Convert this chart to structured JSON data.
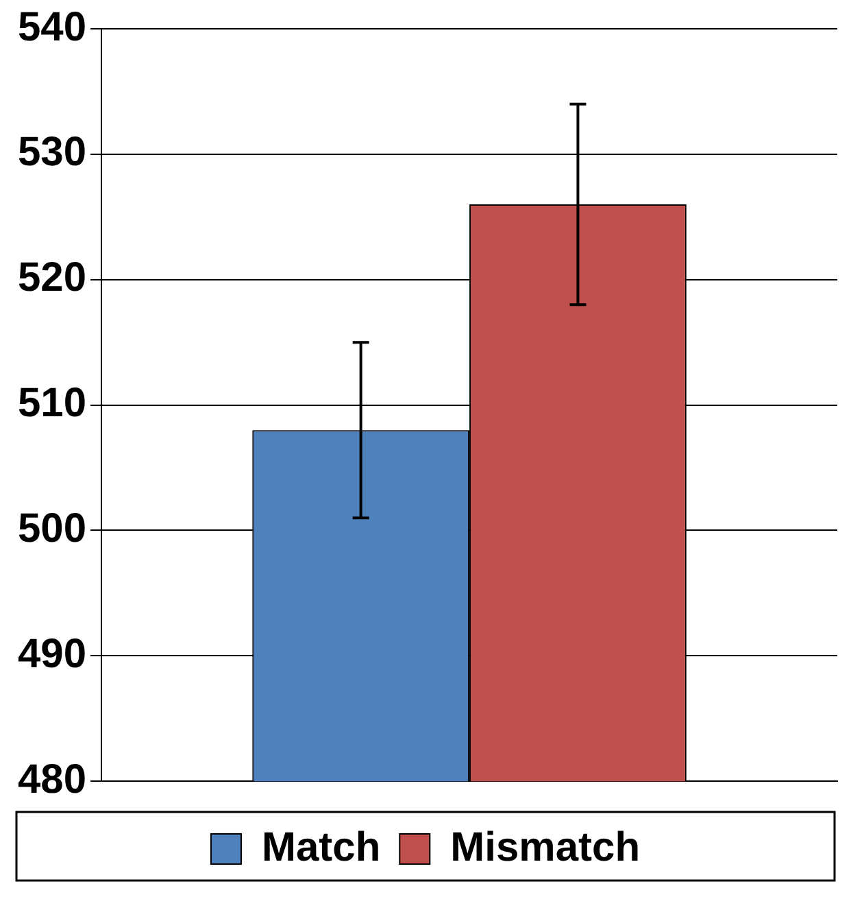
{
  "chart_data": {
    "type": "bar",
    "categories": [
      null
    ],
    "series": [
      {
        "name": "Match",
        "color": "#4f81bd",
        "values": [
          508
        ],
        "errors": [
          7
        ]
      },
      {
        "name": "Mismatch",
        "color": "#c0504d",
        "values": [
          526
        ],
        "errors": [
          8
        ]
      }
    ],
    "ylim": [
      480,
      540
    ],
    "yticks": [
      480,
      490,
      500,
      510,
      520,
      530,
      540
    ],
    "grid": "y",
    "legend": "bottom"
  }
}
